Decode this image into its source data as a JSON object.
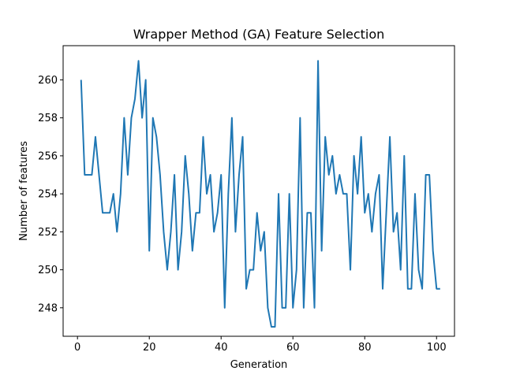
{
  "chart_data": {
    "type": "line",
    "title": "Wrapper Method (GA) Feature Selection",
    "xlabel": "Generation",
    "ylabel": "Number of features",
    "xlim": [
      -4,
      105
    ],
    "ylim": [
      246.5,
      261.8
    ],
    "xticks": [
      0,
      20,
      40,
      60,
      80,
      100
    ],
    "yticks": [
      248,
      250,
      252,
      254,
      256,
      258,
      260
    ],
    "grid": false,
    "line_color": "#1f77b4",
    "series": [
      {
        "x": [
          1,
          2,
          3,
          4,
          5,
          6,
          7,
          8,
          9,
          10,
          11,
          12,
          13,
          14,
          15,
          16,
          17,
          18,
          19,
          20,
          21,
          22,
          23,
          24,
          25,
          26,
          27,
          28,
          29,
          30,
          31,
          32,
          33,
          34,
          35,
          36,
          37,
          38,
          39,
          40,
          41,
          42,
          43,
          44,
          45,
          46,
          47,
          48,
          49,
          50,
          51,
          52,
          53,
          54,
          55,
          56,
          57,
          58,
          59,
          60,
          61,
          62,
          63,
          64,
          65,
          66,
          67,
          68,
          69,
          70,
          71,
          72,
          73,
          74,
          75,
          76,
          77,
          78,
          79,
          80,
          81,
          82,
          83,
          84,
          85,
          86,
          87,
          88,
          89,
          90,
          91,
          92,
          93,
          94,
          95,
          96,
          97,
          98,
          99,
          100,
          101
        ],
        "values": [
          260,
          255,
          255,
          255,
          257,
          255,
          253,
          253,
          253,
          254,
          252,
          254,
          258,
          255,
          258,
          259,
          261,
          258,
          260,
          251,
          258,
          257,
          255,
          252,
          250,
          252,
          255,
          250,
          252,
          256,
          254,
          251,
          253,
          253,
          257,
          254,
          255,
          252,
          253,
          255,
          248,
          254,
          258,
          252,
          255,
          257,
          249,
          250,
          250,
          253,
          251,
          252,
          248,
          247,
          247,
          254,
          248,
          248,
          254,
          248,
          250,
          258,
          248,
          253,
          253,
          248,
          261,
          251,
          257,
          255,
          256,
          254,
          255,
          254,
          254,
          250,
          256,
          254,
          257,
          253,
          254,
          252,
          254,
          255,
          249,
          253,
          257,
          252,
          253,
          250,
          256,
          249,
          249,
          254,
          250,
          249,
          255,
          255,
          251,
          249,
          249
        ]
      }
    ]
  }
}
